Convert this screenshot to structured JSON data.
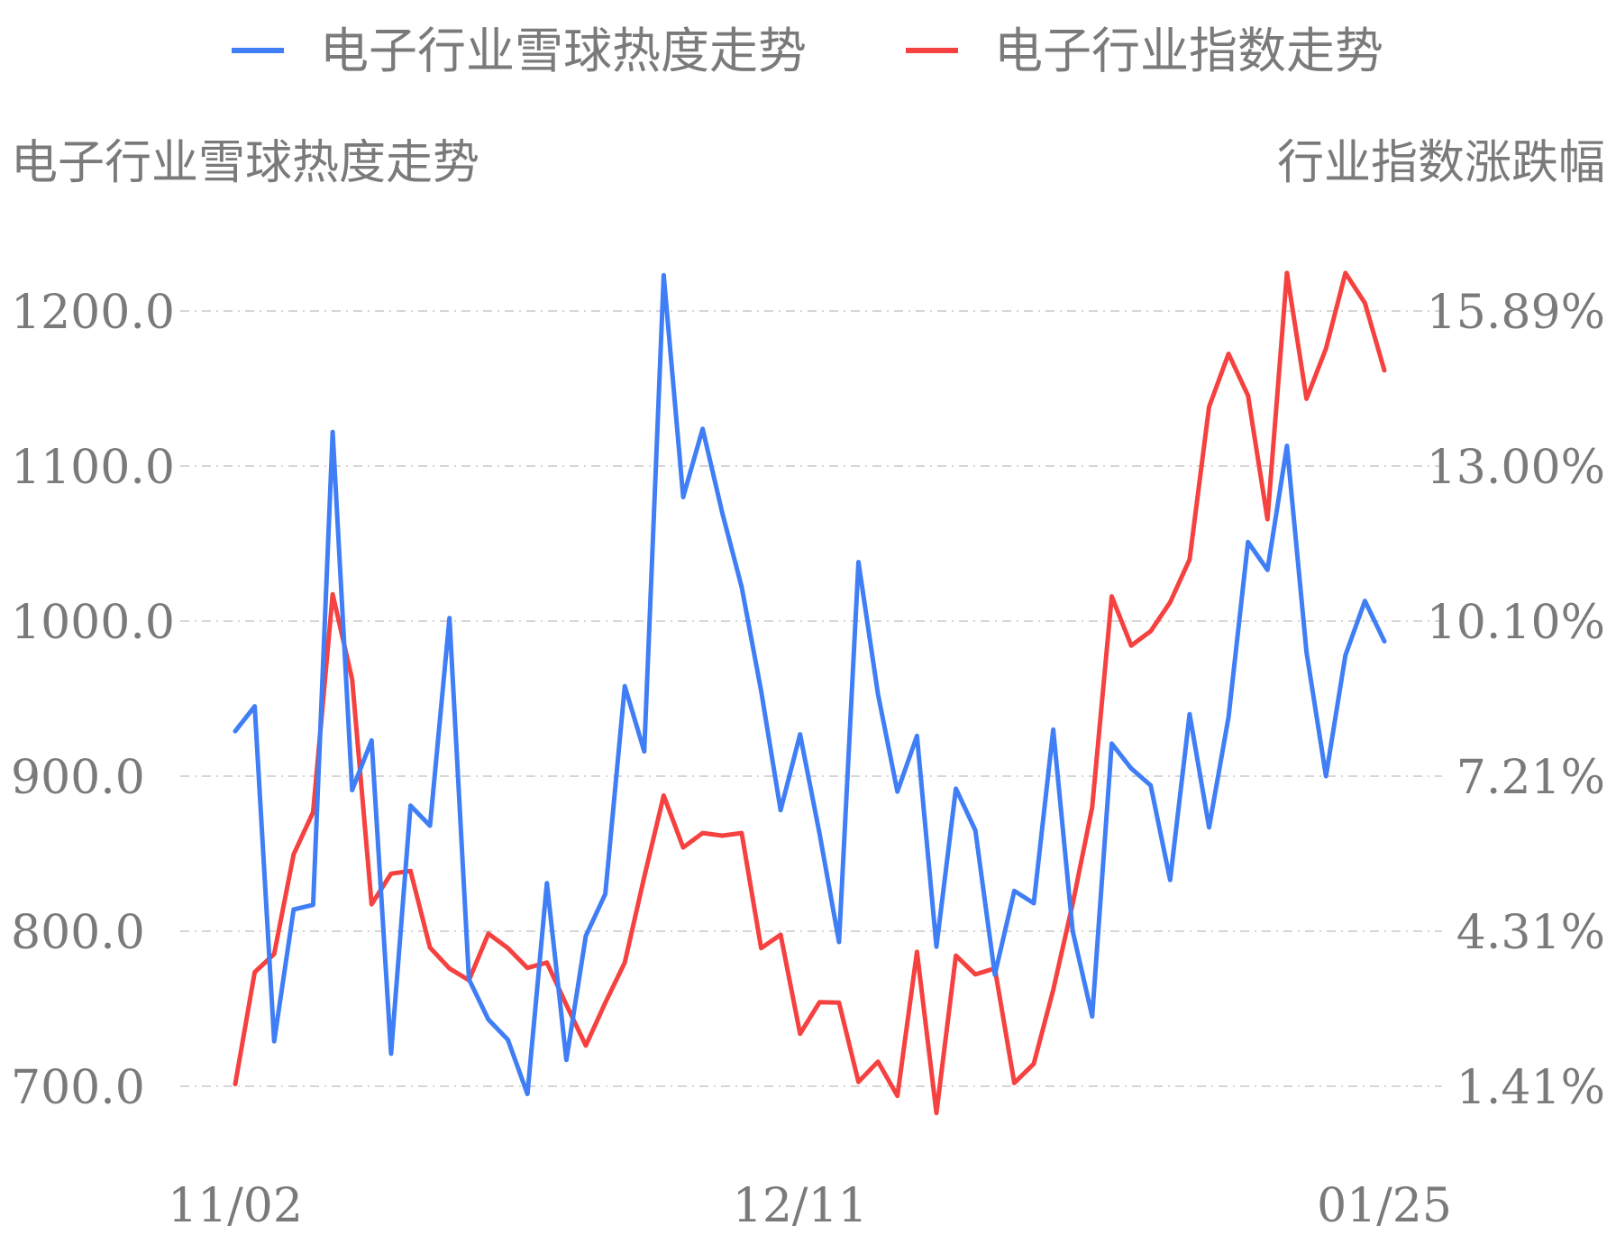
{
  "chart_data": {
    "type": "line",
    "legend": [
      "电子行业雪球热度走势",
      "电子行业指数走势"
    ],
    "left_axis_title": "电子行业雪球热度走势",
    "right_axis_title": "行业指数涨跌幅",
    "left_ticks": [
      "1200.0",
      "1100.0",
      "1000.0",
      "900.0",
      "800.0",
      "700.0"
    ],
    "right_ticks": [
      "15.89%",
      "13.00%",
      "10.10%",
      "7.21%",
      "4.31%",
      "1.41%"
    ],
    "left_ylim": [
      700,
      1200
    ],
    "right_ylim": [
      1.41,
      15.89
    ],
    "x_tick_labels": [
      "11/02",
      "12/11",
      "01/25"
    ],
    "x_tick_positions": [
      0,
      29,
      59
    ],
    "colors": {
      "heat": "#3f7ef5",
      "index": "#f5413f"
    },
    "grid": true,
    "legend_position": "top",
    "series": [
      {
        "name": "电子行业雪球热度走势",
        "axis": "left",
        "values": [
          929,
          945,
          729,
          814,
          817,
          1122,
          891,
          923,
          721,
          881,
          868,
          1002,
          769,
          743,
          730,
          695,
          831,
          717,
          797,
          824,
          958,
          916,
          1223,
          1080,
          1124,
          1070,
          1022,
          955,
          878,
          927,
          863,
          793,
          1038,
          953,
          890,
          926,
          790,
          892,
          865,
          772,
          826,
          818,
          930,
          800,
          745,
          921,
          905,
          894,
          833,
          940,
          867,
          938,
          1051,
          1033,
          1113,
          980,
          900,
          978,
          1013,
          987
        ]
      },
      {
        "name": "电子行业指数走势",
        "axis": "right",
        "values": [
          1.45,
          3.54,
          3.88,
          5.74,
          6.53,
          10.6,
          9.01,
          4.81,
          5.38,
          5.43,
          4.0,
          3.61,
          3.39,
          4.26,
          3.99,
          3.62,
          3.72,
          2.93,
          2.17,
          2.97,
          3.72,
          5.32,
          6.84,
          5.87,
          6.14,
          6.09,
          6.14,
          3.99,
          4.24,
          2.39,
          2.98,
          2.97,
          1.49,
          1.87,
          1.23,
          3.92,
          0.91,
          3.85,
          3.5,
          3.61,
          1.47,
          1.83,
          3.21,
          4.82,
          6.62,
          10.56,
          9.64,
          9.91,
          10.45,
          11.25,
          14.1,
          15.09,
          14.31,
          12.0,
          16.6,
          14.25,
          15.19,
          16.6,
          16.04,
          14.78
        ]
      }
    ]
  }
}
